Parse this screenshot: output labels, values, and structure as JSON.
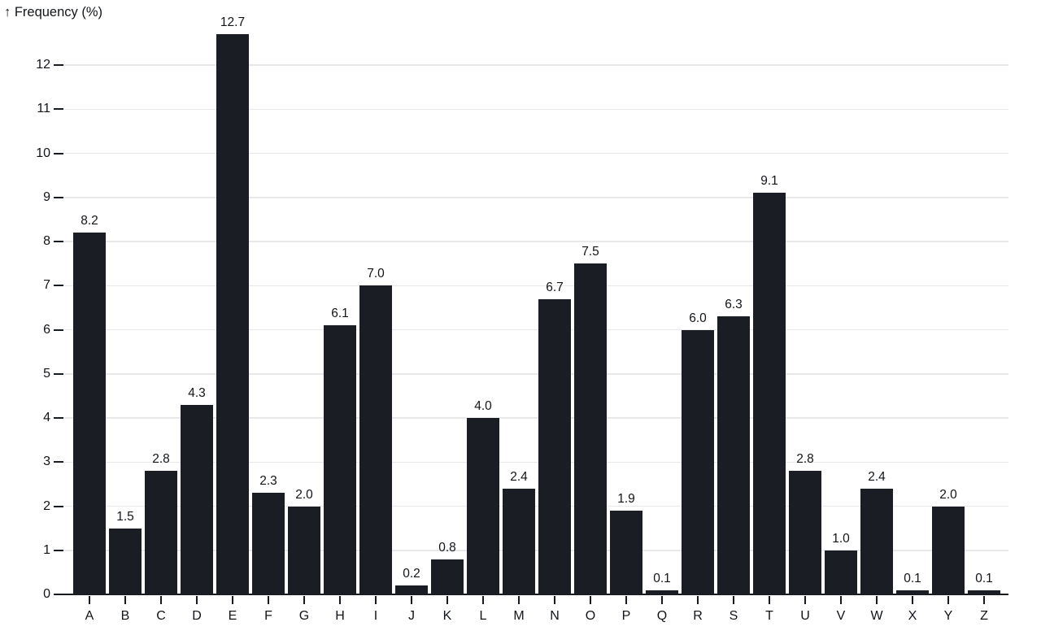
{
  "chart_data": {
    "type": "bar",
    "title": "",
    "ylabel": "↑ Frequency (%)",
    "xlabel": "",
    "categories": [
      "A",
      "B",
      "C",
      "D",
      "E",
      "F",
      "G",
      "H",
      "I",
      "J",
      "K",
      "L",
      "M",
      "N",
      "O",
      "P",
      "Q",
      "R",
      "S",
      "T",
      "U",
      "V",
      "W",
      "X",
      "Y",
      "Z"
    ],
    "values": [
      8.2,
      1.5,
      2.8,
      4.3,
      12.7,
      2.3,
      2.0,
      6.1,
      7.0,
      0.2,
      0.8,
      4.0,
      2.4,
      6.7,
      7.5,
      1.9,
      0.1,
      6.0,
      6.3,
      9.1,
      2.8,
      1.0,
      2.4,
      0.1,
      2.0,
      0.1
    ],
    "value_labels": [
      "8.2",
      "1.5",
      "2.8",
      "4.3",
      "12.7",
      "2.3",
      "2.0",
      "6.1",
      "7.0",
      "0.2",
      "0.8",
      "4.0",
      "2.4",
      "6.7",
      "7.5",
      "1.9",
      "0.1",
      "6.0",
      "6.3",
      "9.1",
      "2.8",
      "1.0",
      "2.4",
      "0.1",
      "2.0",
      "0.1"
    ],
    "y_ticks": [
      0,
      1,
      2,
      3,
      4,
      5,
      6,
      7,
      8,
      9,
      10,
      11,
      12
    ],
    "ylim": [
      0,
      12.7
    ],
    "grid": true,
    "legend": false,
    "colors": {
      "bar": "#1a1d24",
      "grid": "#e9e9e9",
      "axis": "#161a21",
      "text": "#111418",
      "background": "#ffffff"
    }
  }
}
